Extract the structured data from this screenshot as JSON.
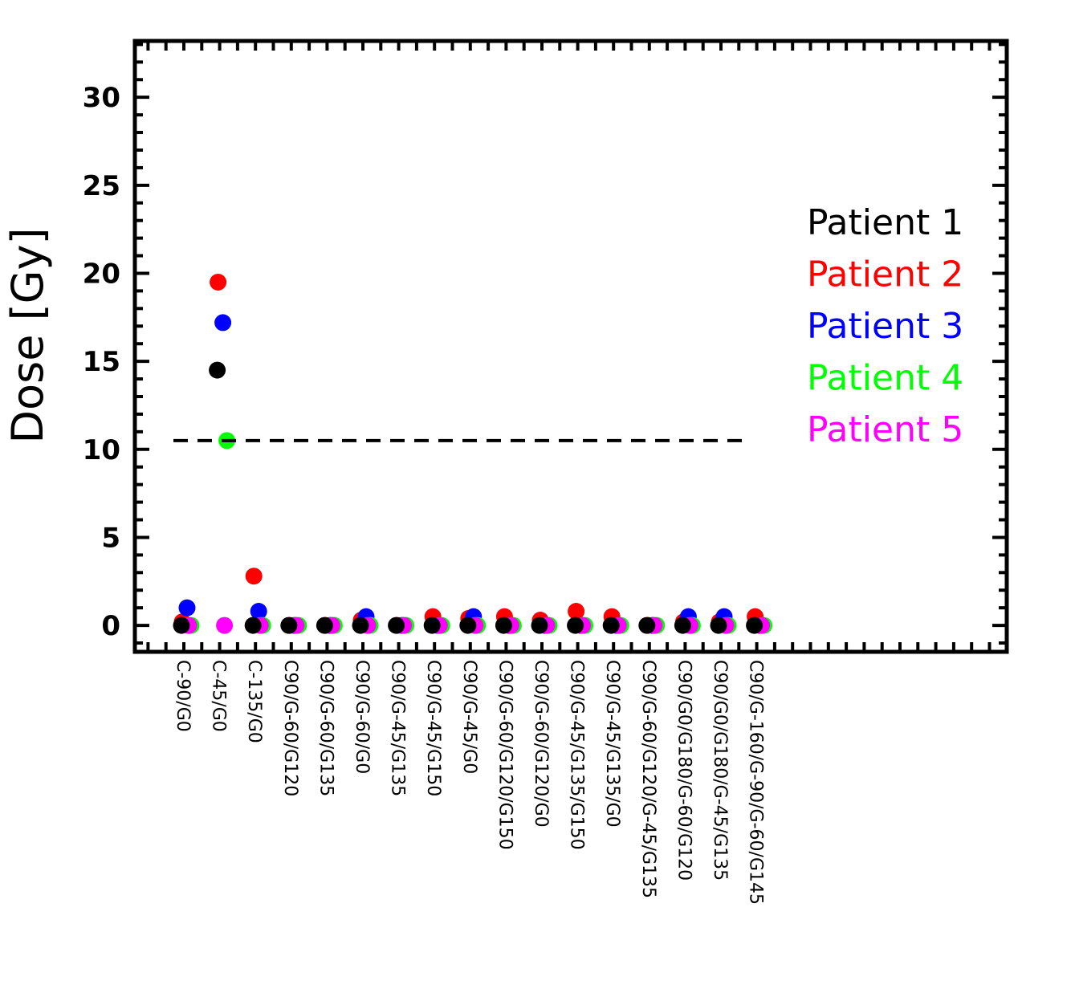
{
  "chart_data": {
    "type": "scatter",
    "title": "",
    "xlabel": "",
    "ylabel": "Dose [Gy]",
    "ylim": [
      -1.5,
      33.2
    ],
    "yticks": [
      0,
      5,
      10,
      15,
      20,
      25,
      30
    ],
    "ytick_labels": [
      "0",
      "5",
      "10",
      "15",
      "20",
      "25",
      "30"
    ],
    "grid": false,
    "legend_position": "right",
    "categories": [
      "C-90/G0",
      "C-45/G0",
      "C-135/G0",
      "C90/G-60/G120",
      "C90/G-60/G135",
      "C90/G-60/G0",
      "C90/G-45/G135",
      "C90/G-45/G150",
      "C90/G-45/G0",
      "C90/G-60/G120/G150",
      "C90/G-60/G120/G0",
      "C90/G-45/G135/G150",
      "C90/G-45/G135/G0",
      "C90/G-60/G120/G-45/G135",
      "C90/G0/G180/G-60/G120",
      "C90/G0/G180/G-45/G135",
      "C90/G-160/G-90/G-60/G145"
    ],
    "threshold": {
      "value": 10.5,
      "style": "dashed"
    },
    "series": [
      {
        "name": "Patient 2",
        "color": "#ff0000",
        "values": [
          0.2,
          19.5,
          2.8,
          0,
          0,
          0.3,
          0,
          0.5,
          0.4,
          0.5,
          0.3,
          0.8,
          0.5,
          0,
          0.2,
          0.2,
          0.5
        ]
      },
      {
        "name": "Patient 3",
        "color": "#0000ff",
        "values": [
          1.0,
          17.2,
          0.8,
          0,
          0,
          0.5,
          0,
          0,
          0.5,
          0,
          0,
          0,
          0,
          0,
          0.5,
          0.5,
          0
        ]
      },
      {
        "name": "Patient 4",
        "color": "#00ff00",
        "values": [
          0,
          10.5,
          0,
          0,
          0,
          0,
          0,
          0,
          0,
          0,
          0,
          0,
          0,
          0,
          0,
          0,
          0
        ]
      },
      {
        "name": "Patient 5",
        "color": "#ff00ff",
        "values": [
          0,
          0,
          0,
          0,
          0,
          0,
          0,
          0,
          0,
          0,
          0,
          0,
          0,
          0,
          0,
          0,
          0
        ]
      },
      {
        "name": "Patient 1",
        "color": "#000000",
        "values": [
          0,
          14.5,
          0,
          0,
          0,
          0,
          0,
          0,
          0,
          0,
          0,
          0,
          0,
          0,
          0,
          0,
          0
        ]
      }
    ],
    "legend": [
      {
        "label": "Patient 1",
        "color": "#000000"
      },
      {
        "label": "Patient 2",
        "color": "#ff0000"
      },
      {
        "label": "Patient 3",
        "color": "#0000ff"
      },
      {
        "label": "Patient 4",
        "color": "#00ff00"
      },
      {
        "label": "Patient 5",
        "color": "#ff00ff"
      }
    ]
  }
}
